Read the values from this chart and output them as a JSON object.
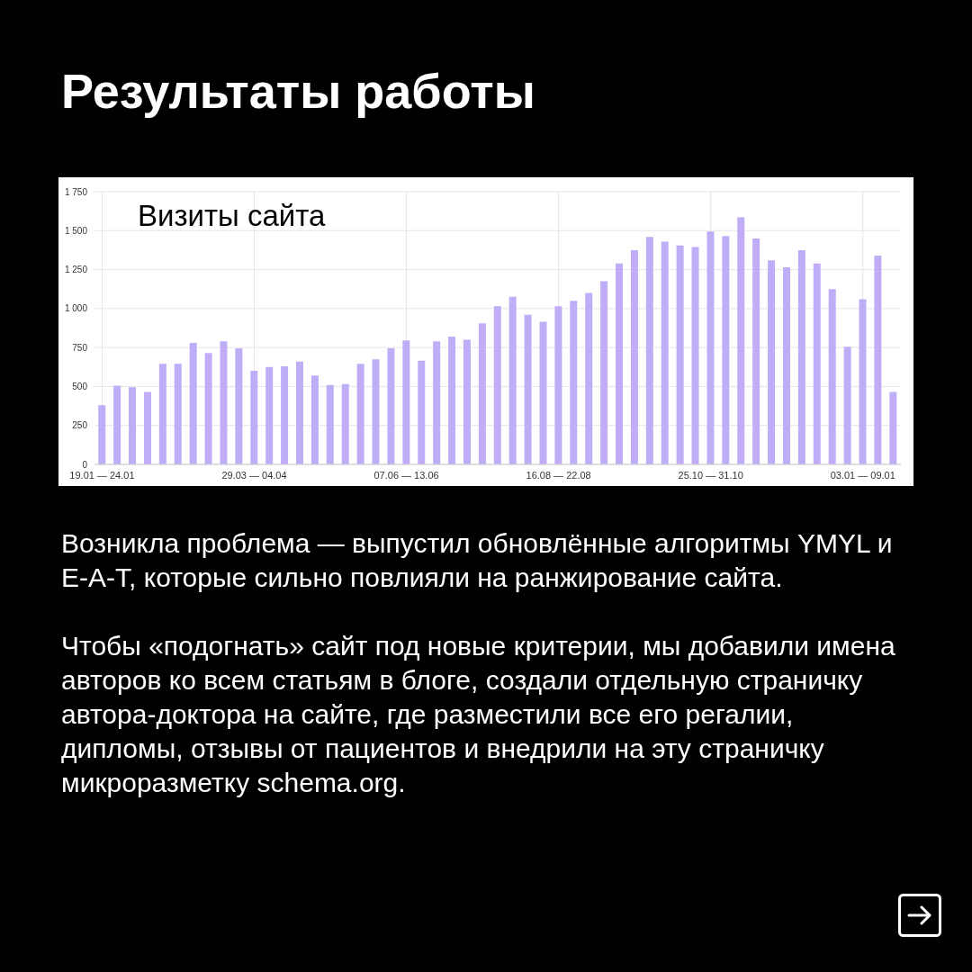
{
  "chart_data": {
    "type": "bar",
    "title": "Результаты работы",
    "subtitle": "Визиты сайта",
    "categories": [
      "19.01 — 24.01",
      null,
      null,
      null,
      null,
      null,
      null,
      null,
      null,
      null,
      "29.03 — 04.04",
      null,
      null,
      null,
      null,
      null,
      null,
      null,
      null,
      null,
      "07.06 — 13.06",
      null,
      null,
      null,
      null,
      null,
      null,
      null,
      null,
      null,
      "16.08 — 22.08",
      null,
      null,
      null,
      null,
      null,
      null,
      null,
      null,
      null,
      "25.10 — 31.10",
      null,
      null,
      null,
      null,
      null,
      null,
      null,
      null,
      null,
      "03.01 — 09.01",
      null,
      null
    ],
    "values": [
      380,
      505,
      495,
      465,
      645,
      645,
      780,
      715,
      790,
      745,
      600,
      625,
      630,
      660,
      570,
      510,
      515,
      645,
      675,
      745,
      795,
      665,
      790,
      820,
      800,
      905,
      1015,
      1075,
      960,
      915,
      1015,
      1050,
      1100,
      1175,
      1290,
      1375,
      1460,
      1430,
      1405,
      1395,
      1495,
      1465,
      1585,
      1450,
      1310,
      1265,
      1375,
      1290,
      1125,
      755,
      1060,
      1340,
      465
    ],
    "color": "#bfaef7",
    "ylim": [
      0,
      1750
    ],
    "yticks": [
      0,
      250,
      500,
      750,
      {
        "value": 1000,
        "label": "1 000"
      },
      {
        "value": 1250,
        "label": "1 250"
      },
      {
        "value": 1500,
        "label": "1 500"
      },
      {
        "value": 1750,
        "label": "1 750"
      }
    ],
    "grid": true,
    "annotations": [
      "Возникла проблема — выпустил обновлённые алгоритмы YMYL и E-A-T, которые сильно повлияли на ранжирование сайта.",
      "Чтобы «подогнать» сайт под новые критерии, мы добавили имена авторов ко всем статьям в блоге, создали отдельную страничку автора-доктора на сайте, где разместили все его регалии, дипломы, отзывы от пациентов и внедрили на эту страничку микроразметку schema.org."
    ]
  }
}
